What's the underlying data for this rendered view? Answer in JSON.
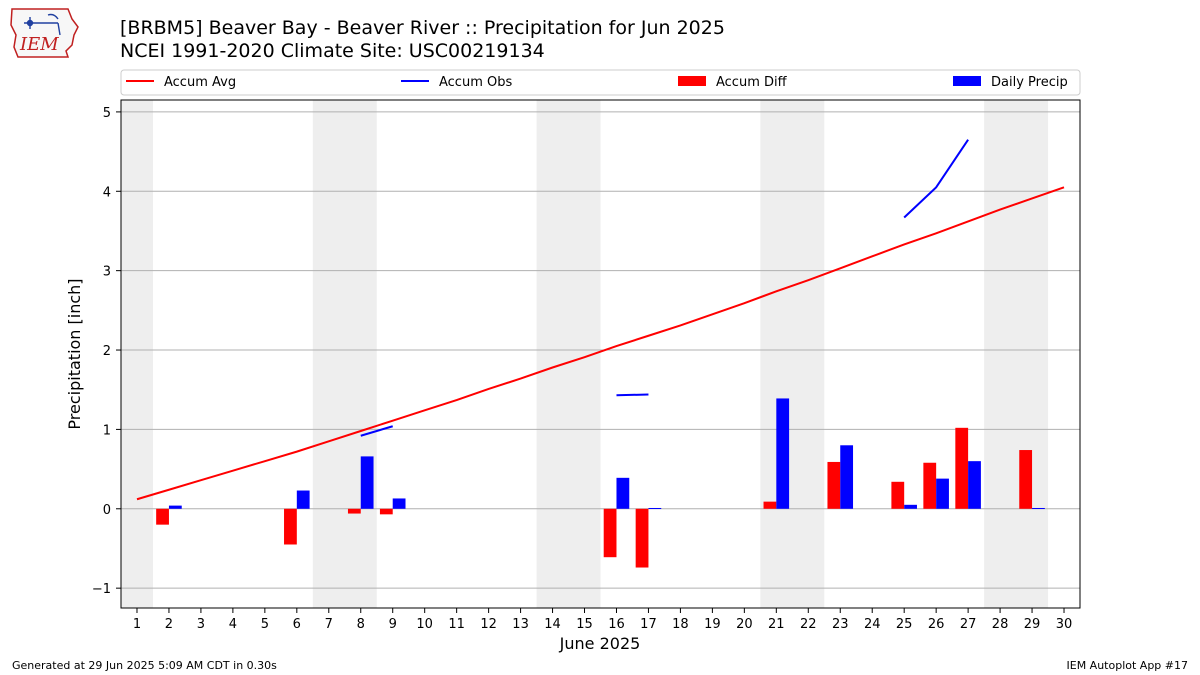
{
  "logo": {
    "text": "IEM"
  },
  "header": {
    "title_line1": "[BRBM5] Beaver Bay - Beaver River :: Precipitation for Jun 2025",
    "title_line2": "NCEI 1991-2020 Climate Site: USC00219134"
  },
  "footer": {
    "left": "Generated at 29 Jun 2025 5:09 AM CDT in 0.30s",
    "right": "IEM Autoplot App #17"
  },
  "colors": {
    "avg": "#ff0000",
    "obs": "#0000ff",
    "diff": "#ff0000",
    "daily": "#0000ff",
    "weekend_shade": "#eeeeee",
    "grid": "#b0b0b0"
  },
  "chart_data": {
    "type": "bar",
    "title": "[BRBM5] Beaver Bay - Beaver River :: Precipitation for Jun 2025",
    "xlabel": "June 2025",
    "ylabel": "Precipitation [inch]",
    "xlim": [
      0.5,
      30.5
    ],
    "ylim": [
      -1.25,
      5.15
    ],
    "yticks": [
      -1,
      0,
      1,
      2,
      3,
      4,
      5
    ],
    "xticks": [
      1,
      2,
      3,
      4,
      5,
      6,
      7,
      8,
      9,
      10,
      11,
      12,
      13,
      14,
      15,
      16,
      17,
      18,
      19,
      20,
      21,
      22,
      23,
      24,
      25,
      26,
      27,
      28,
      29,
      30
    ],
    "grid": "y",
    "legend_position": "top",
    "legend": [
      {
        "label": "Accum Avg",
        "kind": "line",
        "color": "#ff0000"
      },
      {
        "label": "Accum Obs",
        "kind": "line",
        "color": "#0000ff"
      },
      {
        "label": "Accum Diff",
        "kind": "bar",
        "color": "#ff0000"
      },
      {
        "label": "Daily Precip",
        "kind": "bar",
        "color": "#0000ff"
      }
    ],
    "weekend_shading": [
      [
        0.5,
        1.5
      ],
      [
        6.5,
        8.5
      ],
      [
        13.5,
        15.5
      ],
      [
        20.5,
        22.5
      ],
      [
        27.5,
        29.5
      ]
    ],
    "series": [
      {
        "name": "Accum Avg",
        "type": "line",
        "color": "#ff0000",
        "x": [
          1,
          2,
          3,
          4,
          5,
          6,
          7,
          8,
          9,
          10,
          11,
          12,
          13,
          14,
          15,
          16,
          17,
          18,
          19,
          20,
          21,
          22,
          23,
          24,
          25,
          26,
          27,
          28,
          29,
          30
        ],
        "values": [
          0.12,
          0.24,
          0.36,
          0.48,
          0.6,
          0.72,
          0.85,
          0.98,
          1.11,
          1.24,
          1.37,
          1.51,
          1.64,
          1.78,
          1.91,
          2.05,
          2.18,
          2.31,
          2.45,
          2.59,
          2.74,
          2.88,
          3.03,
          3.18,
          3.33,
          3.47,
          3.62,
          3.77,
          3.91,
          4.05
        ]
      },
      {
        "name": "Accum Obs",
        "type": "line",
        "color": "#0000ff",
        "segments": [
          {
            "x": [
              8,
              9
            ],
            "values": [
              0.92,
              1.04
            ]
          },
          {
            "x": [
              16,
              17
            ],
            "values": [
              1.43,
              1.44
            ]
          },
          {
            "x": [
              25,
              26,
              27
            ],
            "values": [
              3.67,
              4.05,
              4.65
            ]
          }
        ]
      },
      {
        "name": "Accum Diff",
        "type": "bar",
        "color": "#ff0000",
        "x": [
          2,
          6,
          8,
          9,
          16,
          17,
          21,
          23,
          25,
          26,
          27,
          29
        ],
        "values": [
          -0.2,
          -0.45,
          -0.06,
          -0.07,
          -0.61,
          -0.74,
          0.09,
          0.59,
          0.34,
          0.58,
          1.02,
          0.74
        ]
      },
      {
        "name": "Daily Precip",
        "type": "bar",
        "color": "#0000ff",
        "x": [
          2,
          6,
          8,
          9,
          16,
          17,
          21,
          23,
          25,
          26,
          27,
          29
        ],
        "values": [
          0.04,
          0.23,
          0.66,
          0.13,
          0.39,
          0.01,
          1.39,
          0.8,
          0.05,
          0.38,
          0.6,
          0.01
        ]
      }
    ]
  }
}
